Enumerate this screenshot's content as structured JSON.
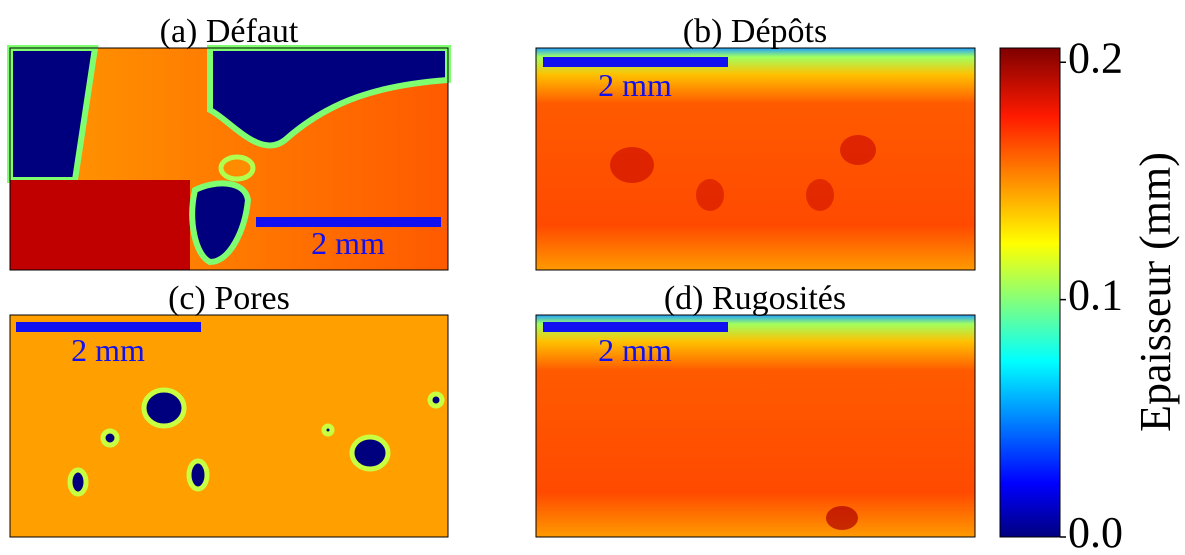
{
  "panels": [
    {
      "title": "(a) Défaut",
      "scale_bar": "2 mm"
    },
    {
      "title": "(b) Dépôts",
      "scale_bar": "2 mm"
    },
    {
      "title": "(c) Pores",
      "scale_bar": "2 mm"
    },
    {
      "title": "(d) Rugosités",
      "scale_bar": "2 mm"
    }
  ],
  "colorbar": {
    "label": "Epaisseur (mm)",
    "lim": [
      0,
      0.206
    ],
    "ticks": [
      {
        "value": 0,
        "label": "0.0"
      },
      {
        "value": 0.1,
        "label": "0.1"
      },
      {
        "value": 0.2,
        "label": "0.2"
      }
    ]
  }
}
